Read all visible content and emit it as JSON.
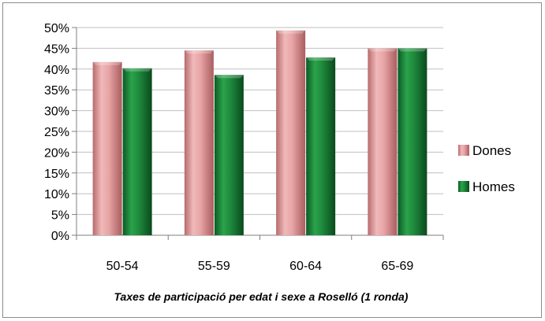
{
  "chart_data": {
    "type": "bar",
    "categories": [
      "50-54",
      "55-59",
      "60-64",
      "65-69"
    ],
    "series": [
      {
        "name": "Dones",
        "values": [
          41.7,
          44.5,
          49.3,
          45.0
        ],
        "color": "#e39a9b"
      },
      {
        "name": "Homes",
        "values": [
          40.2,
          38.6,
          42.8,
          45.0
        ],
        "color": "#1e8a3c"
      }
    ],
    "title": "",
    "xlabel": "Taxes de participació per edat i sexe a Roselló (1 ronda)",
    "ylabel": "",
    "ylim": [
      0,
      50
    ],
    "yticks": [
      0,
      5,
      10,
      15,
      20,
      25,
      30,
      35,
      40,
      45,
      50
    ],
    "ytick_labels": [
      "0%",
      "5%",
      "10%",
      "15%",
      "20%",
      "25%",
      "30%",
      "35%",
      "40%",
      "45%",
      "50%"
    ],
    "grid": true,
    "legend": "right"
  }
}
